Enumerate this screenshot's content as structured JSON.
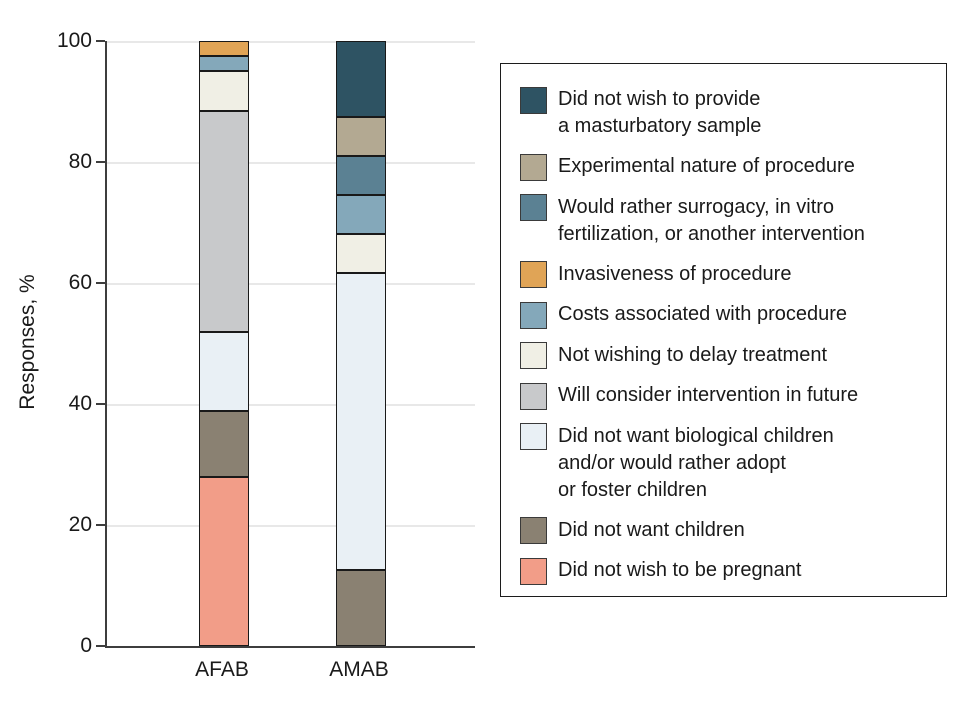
{
  "figure": {
    "background": "#ffffff",
    "axis_color": "#3d3d3d",
    "gridline_color": "#e8e8e8",
    "text_color": "#1a1a1a"
  },
  "chart_data": {
    "type": "bar",
    "variant": "stacked-vertical",
    "title": "",
    "xlabel": "",
    "ylabel": "Responses, %",
    "ylim": [
      0,
      100
    ],
    "yticks": [
      0,
      20,
      40,
      60,
      80,
      100
    ],
    "grid": "horizontal",
    "legend_position": "right",
    "stack_order": "first series is topmost segment of each bar",
    "categories": [
      "AFAB",
      "AMAB"
    ],
    "series": [
      {
        "name": "Did not wish to provide a masturbatory sample",
        "label_lines": [
          "Did not wish to provide",
          "a masturbatory sample"
        ],
        "color": "#2e5363",
        "values": [
          0,
          12.5
        ]
      },
      {
        "name": "Experimental nature of procedure",
        "label_lines": [
          "Experimental nature of procedure"
        ],
        "color": "#b3a992",
        "values": [
          0,
          6.25
        ]
      },
      {
        "name": "Would rather surrogacy, in vitro fertilization, or another intervention",
        "label_lines": [
          "Would rather surrogacy, in vitro",
          "fertilization, or another intervention"
        ],
        "color": "#5b8193",
        "values": [
          0,
          6.25
        ]
      },
      {
        "name": "Invasiveness of procedure",
        "label_lines": [
          "Invasiveness of procedure"
        ],
        "color": "#e0a456",
        "values": [
          2.2,
          0
        ]
      },
      {
        "name": "Costs associated with procedure",
        "label_lines": [
          "Costs associated with procedure"
        ],
        "color": "#84a8ba",
        "values": [
          2.2,
          6.25
        ]
      },
      {
        "name": "Not wishing to delay treatment",
        "label_lines": [
          "Not wishing to delay treatment"
        ],
        "color": "#f0efe5",
        "values": [
          6.5,
          6.25
        ]
      },
      {
        "name": "Will consider intervention in future",
        "label_lines": [
          "Will consider intervention in future"
        ],
        "color": "#c8c9cb",
        "values": [
          37.0,
          0
        ]
      },
      {
        "name": "Did not want biological children and/or would rather adopt or foster children",
        "label_lines": [
          "Did not want biological children",
          "and/or would rather adopt",
          "or foster children"
        ],
        "color": "#e9f0f5",
        "values": [
          13.0,
          50.0
        ]
      },
      {
        "name": "Did not want children",
        "label_lines": [
          "Did not want children"
        ],
        "color": "#8a8172",
        "values": [
          10.9,
          12.5
        ]
      },
      {
        "name": "Did not wish to be pregnant",
        "label_lines": [
          "Did not wish to be pregnant"
        ],
        "color": "#f29d88",
        "values": [
          28.3,
          0
        ]
      }
    ]
  }
}
